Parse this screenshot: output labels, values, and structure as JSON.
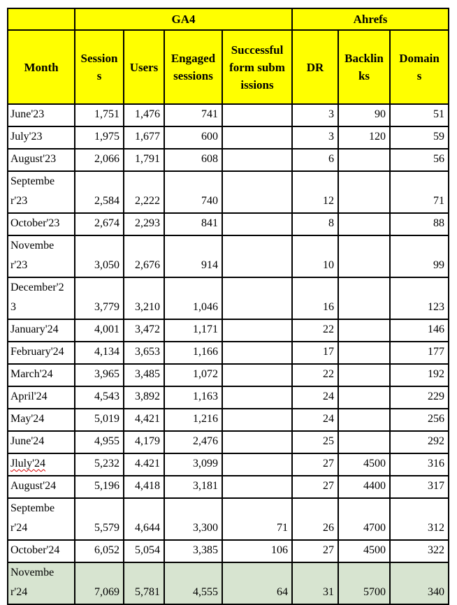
{
  "colors": {
    "header_background": "#ffff00",
    "highlight_row_background": "#d7e4d0",
    "grid_border": "#000000",
    "text": "#000000",
    "spellcheck_underline": "#dd0000"
  },
  "table": {
    "group_header": {
      "month_spacer": "",
      "ga4": "GA4",
      "ahrefs": "Ahrefs"
    },
    "columns": [
      "Month",
      "Sessions",
      "Users",
      "Engaged sessions",
      "Successful form submissions",
      "DR",
      "Backlinks",
      "Domains"
    ],
    "rows": [
      {
        "cells": [
          "June'23",
          "1,751",
          "1,476",
          "741",
          "",
          "3",
          "90",
          "51"
        ]
      },
      {
        "cells": [
          "July'23",
          "1,975",
          "1,677",
          "600",
          "",
          "3",
          "120",
          "59"
        ]
      },
      {
        "cells": [
          "August'23",
          "2,066",
          "1,791",
          "608",
          "",
          "6",
          "",
          "56"
        ]
      },
      {
        "cells": [
          "September'23",
          "2,584",
          "2,222",
          "740",
          "",
          "12",
          "",
          "71"
        ]
      },
      {
        "cells": [
          "October'23",
          "2,674",
          "2,293",
          "841",
          "",
          "8",
          "",
          "88"
        ]
      },
      {
        "cells": [
          "November'23",
          "3,050",
          "2,676",
          "914",
          "",
          "10",
          "",
          "99"
        ]
      },
      {
        "cells": [
          "December'23",
          "3,779",
          "3,210",
          "1,046",
          "",
          "16",
          "",
          "123"
        ]
      },
      {
        "cells": [
          "January'24",
          "4,001",
          "3,472",
          "1,171",
          "",
          "22",
          "",
          "146"
        ]
      },
      {
        "cells": [
          "February'24",
          "4,134",
          "3,653",
          "1,166",
          "",
          "17",
          "",
          "177"
        ]
      },
      {
        "cells": [
          "March'24",
          "3,965",
          "3,485",
          "1,072",
          "",
          "22",
          "",
          "192"
        ]
      },
      {
        "cells": [
          "April'24",
          "4,543",
          "3,892",
          "1,163",
          "",
          "24",
          "",
          "229"
        ]
      },
      {
        "cells": [
          "May'24",
          "5,019",
          "4,421",
          "1,216",
          "",
          "24",
          "",
          "256"
        ]
      },
      {
        "cells": [
          "June'24",
          "4,955",
          "4,179",
          "2,476",
          "",
          "25",
          "",
          "292"
        ]
      },
      {
        "cells": [
          "Jluly'24",
          "5,232",
          "4.421",
          "3,099",
          "",
          "27",
          "4500",
          "316"
        ],
        "misspelled_month": true
      },
      {
        "cells": [
          "August'24",
          "5,196",
          "4,418",
          "3,181",
          "",
          "27",
          "4400",
          "317"
        ]
      },
      {
        "cells": [
          "September'24",
          "5,579",
          "4,644",
          "3,300",
          "71",
          "26",
          "4700",
          "312"
        ]
      },
      {
        "cells": [
          "October'24",
          "6,052",
          "5,054",
          "3,385",
          "106",
          "27",
          "4500",
          "322"
        ]
      },
      {
        "cells": [
          "November'24",
          "7,069",
          "5,781",
          "4,555",
          "64",
          "31",
          "5700",
          "340"
        ],
        "highlighted": true
      }
    ]
  }
}
